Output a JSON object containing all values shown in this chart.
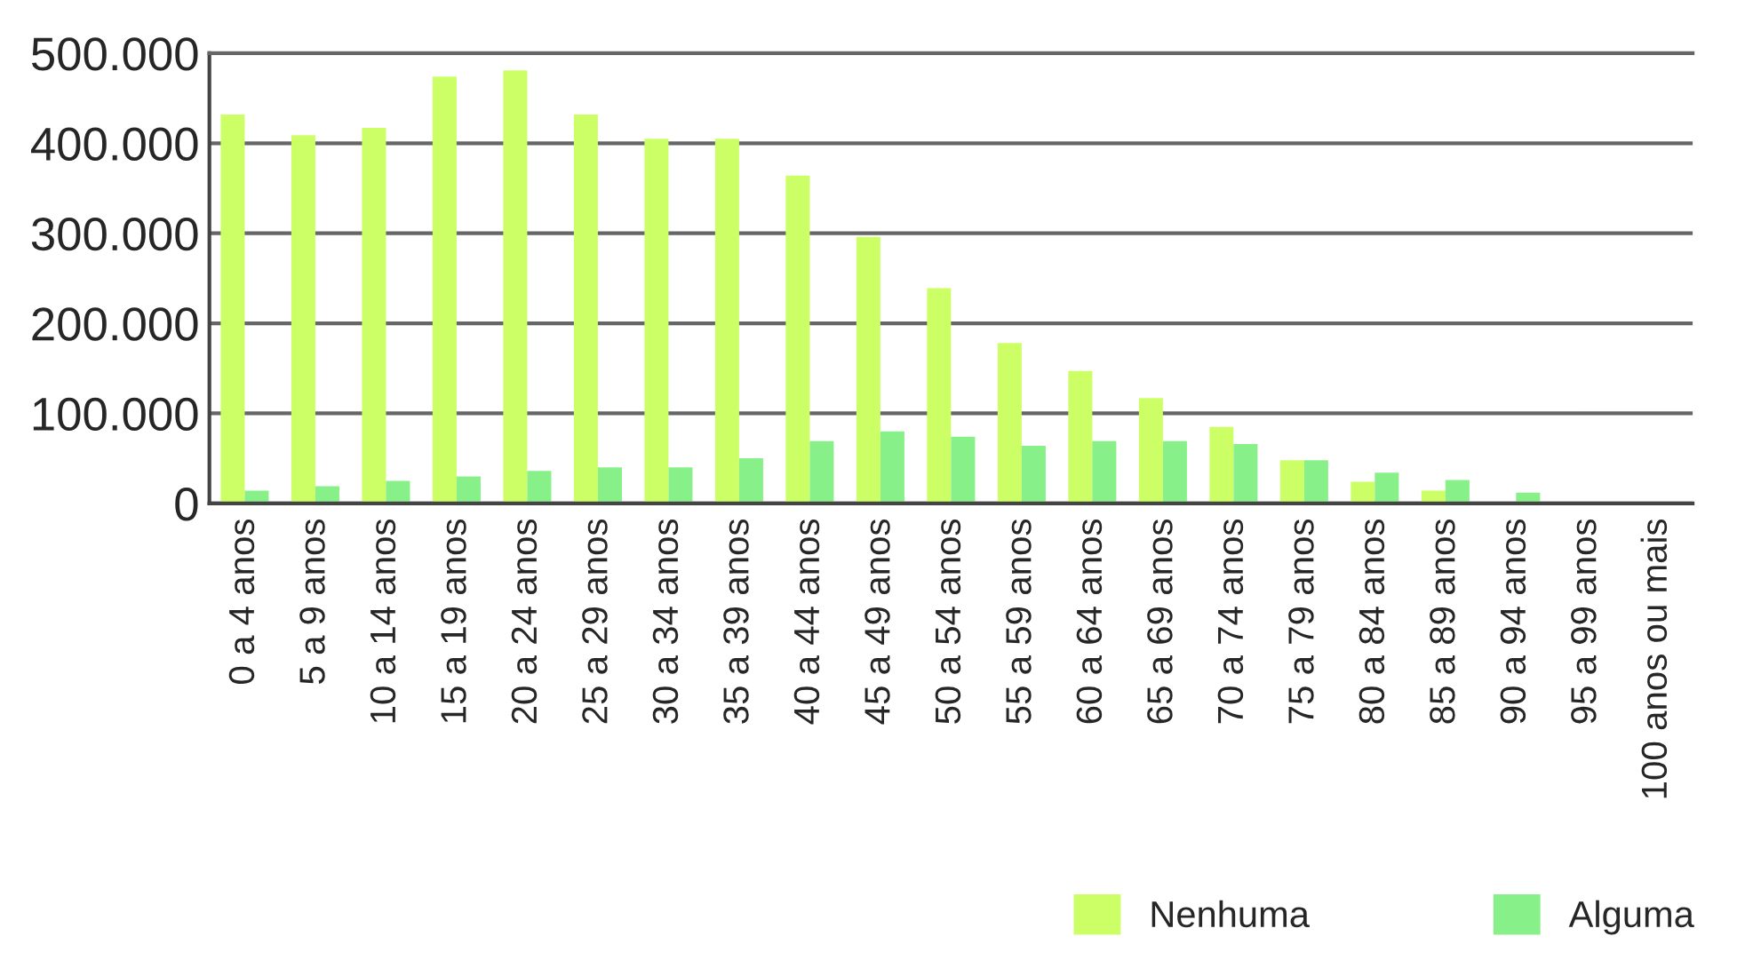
{
  "chart_data": {
    "type": "bar",
    "categories": [
      "0 a 4 anos",
      "5 a 9 anos",
      "10 a 14 anos",
      "15 a 19 anos",
      "20 a 24 anos",
      "25 a 29 anos",
      "30 a 34 anos",
      "35 a 39 anos",
      "40 a 44 anos",
      "45 a 49 anos",
      "50 a 54 anos",
      "55 a 59 anos",
      "60 a 64 anos",
      "65 a 69 anos",
      "70 a 74 anos",
      "75 a 79 anos",
      "80 a 84 anos",
      "85 a 89 anos",
      "90 a 94 anos",
      "95 a 99 anos",
      "100 anos ou mais"
    ],
    "series": [
      {
        "name": "Nenhuma",
        "color": "#ccff66",
        "values": [
          432000,
          409000,
          417000,
          474000,
          481000,
          432000,
          405000,
          405000,
          364000,
          296000,
          239000,
          178000,
          147000,
          117000,
          85000,
          48000,
          24000,
          14000,
          0,
          0,
          0
        ]
      },
      {
        "name": "Alguma",
        "color": "#88f088",
        "values": [
          14000,
          19000,
          25000,
          30000,
          36000,
          40000,
          40000,
          50000,
          69000,
          80000,
          74000,
          64000,
          69000,
          69000,
          66000,
          48000,
          34000,
          26000,
          12000,
          0,
          0
        ]
      }
    ],
    "ylim": [
      0,
      500000
    ],
    "yticks": [
      {
        "value": 0,
        "label": "0"
      },
      {
        "value": 100000,
        "label": "100.000"
      },
      {
        "value": 200000,
        "label": "200.000"
      },
      {
        "value": 300000,
        "label": "300.000"
      },
      {
        "value": 400000,
        "label": "400.000"
      },
      {
        "value": 500000,
        "label": "500.000"
      }
    ],
    "grid": "y",
    "legend": "bottom right"
  }
}
